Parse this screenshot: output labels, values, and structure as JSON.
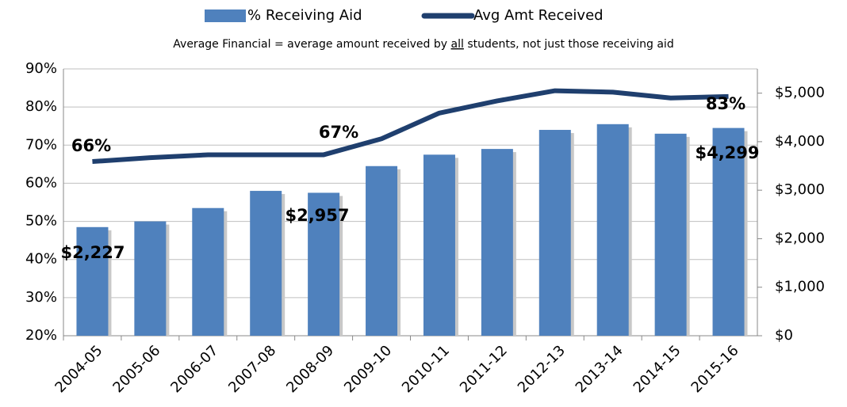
{
  "chart_data": {
    "type": "bar-line",
    "subtitle_parts": [
      "Average Financial = average amount received by ",
      "all",
      " students, not just those receiving aid"
    ],
    "categories": [
      "2004-05",
      "2005-06",
      "2006-07",
      "2007-08",
      "2008-09",
      "2009-10",
      "2010-11",
      "2011-12",
      "2012-13",
      "2013-14",
      "2014-15",
      "2015-16"
    ],
    "series": [
      {
        "name": "% Receiving Aid",
        "color": "#4f81bd",
        "type": "bar",
        "values": [
          48.5,
          50,
          53.5,
          58,
          57.5,
          64.5,
          67.5,
          69,
          74,
          75.5,
          73,
          74.5
        ]
      },
      {
        "name": "Avg Amt Received",
        "color": "#1f3f6e",
        "type": "line",
        "axis": "y2",
        "values": [
          3590,
          3670,
          3730,
          3730,
          3730,
          4060,
          4590,
          4840,
          5050,
          5020,
          4900,
          4930
        ]
      }
    ],
    "ylim": [
      20,
      90
    ],
    "yticks": [
      {
        "value": 20,
        "label": "20%"
      },
      {
        "value": 30,
        "label": "30%"
      },
      {
        "value": 40,
        "label": "40%"
      },
      {
        "value": 50,
        "label": "50%"
      },
      {
        "value": 60,
        "label": "60%"
      },
      {
        "value": 70,
        "label": "70%"
      },
      {
        "value": 80,
        "label": "80%"
      },
      {
        "value": 90,
        "label": "90%"
      }
    ],
    "y2lim": [
      0,
      5500
    ],
    "y2ticks": [
      {
        "value": 0,
        "label": "$0"
      },
      {
        "value": 1000,
        "label": "$1,000"
      },
      {
        "value": 2000,
        "label": "$2,000"
      },
      {
        "value": 3000,
        "label": "$3,000"
      },
      {
        "value": 4000,
        "label": "$4,000"
      },
      {
        "value": 5000,
        "label": "$5,000"
      }
    ],
    "annotations": [
      "66%",
      "67%",
      "83%",
      "$2,227",
      "$2,957",
      "$4,299"
    ],
    "legend": "top"
  }
}
